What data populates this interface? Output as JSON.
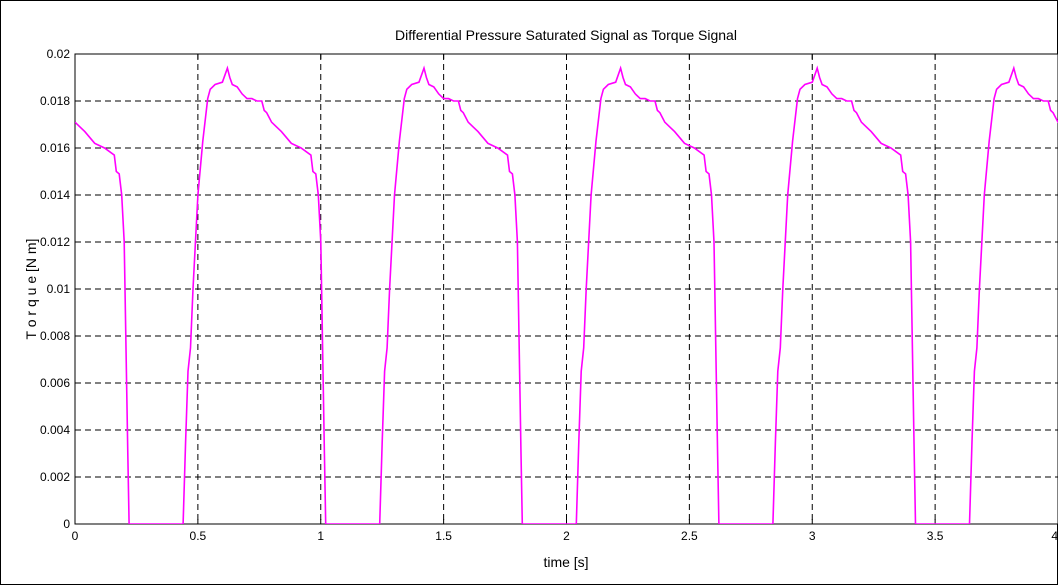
{
  "chart_data": {
    "type": "line",
    "title": "Differential Pressure Saturated Signal as Torque Signal",
    "xlabel": "time [s]",
    "ylabel": "T o r q u e  [N m]",
    "xlim": [
      0,
      4
    ],
    "ylim": [
      0,
      0.02
    ],
    "xticks": [
      0,
      0.5,
      1,
      1.5,
      2,
      2.5,
      3,
      3.5,
      4
    ],
    "xtick_labels": [
      "0",
      "0.5",
      "1",
      "1.5",
      "2",
      "2.5",
      "3",
      "3.5",
      "4"
    ],
    "yticks": [
      0,
      0.002,
      0.004,
      0.006,
      0.008,
      0.01,
      0.012,
      0.014,
      0.016,
      0.018,
      0.02
    ],
    "ytick_labels": [
      "0",
      "0.002",
      "0.004",
      "0.006",
      "0.008",
      "0.01",
      "0.012",
      "0.014",
      "0.016",
      "0.018",
      "0.02"
    ],
    "grid": true,
    "line_color": "#ff00ff",
    "period": 0.8,
    "series": [
      {
        "x": [
          0,
          0.04,
          0.08,
          0.12,
          0.16,
          0.168,
          0.18,
          0.19,
          0.2,
          0.205,
          0.21,
          0.215,
          0.22,
          0.3,
          0.36,
          0.44,
          0.45,
          0.46,
          0.47,
          0.48,
          0.5,
          0.52,
          0.54,
          0.55,
          0.57,
          0.6,
          0.62,
          0.63,
          0.64,
          0.66,
          0.68,
          0.7,
          0.72,
          0.74,
          0.76,
          0.77,
          0.78,
          0.79,
          0.8
        ],
        "y": [
          0.0171,
          0.0167,
          0.0162,
          0.016,
          0.0157,
          0.015,
          0.0149,
          0.014,
          0.012,
          0.009,
          0.006,
          0.003,
          0,
          0,
          0,
          0,
          0.0035,
          0.0065,
          0.0075,
          0.01,
          0.014,
          0.0163,
          0.0181,
          0.0185,
          0.0187,
          0.0188,
          0.0194,
          0.019,
          0.0187,
          0.0186,
          0.0183,
          0.0181,
          0.0181,
          0.018,
          0.018,
          0.0176,
          0.0175,
          0.0173,
          0.0171
        ]
      }
    ]
  }
}
